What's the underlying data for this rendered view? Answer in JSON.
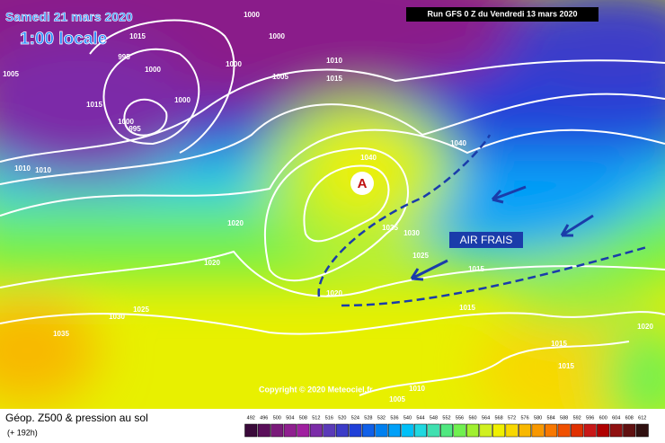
{
  "header": {
    "date": "Samedi 21 mars 2020",
    "time": "1:00 locale",
    "run": "Run GFS 0 Z du Vendredi 13 mars 2020"
  },
  "map": {
    "anticyclone": "A",
    "annotation": "AIR FRAIS",
    "copyright": "Copyright © 2020 Meteociel.fr",
    "isobar_labels": [
      1000,
      1015,
      1000,
      995,
      1000,
      1000,
      1005,
      1005,
      1010,
      1015,
      1015,
      1000,
      1000,
      995,
      1010,
      1010,
      1040,
      1040,
      1020,
      1035,
      1030,
      1020,
      1025,
      1015,
      1020,
      1030,
      1025,
      1015,
      1035,
      1020,
      1015,
      1015,
      1010,
      1005
    ]
  },
  "legend": {
    "title": "Géop. Z500 & pression au sol",
    "subtitle": "(+ 192h)",
    "values": [
      492,
      496,
      500,
      504,
      508,
      512,
      516,
      520,
      524,
      528,
      532,
      536,
      540,
      544,
      548,
      552,
      556,
      560,
      564,
      568,
      572,
      576,
      580,
      584,
      588,
      592,
      596,
      600,
      604,
      608,
      612
    ],
    "colors": [
      "#3a0a3a",
      "#5a0f5a",
      "#7a1a7a",
      "#8f1f8f",
      "#a020a0",
      "#7b2ca8",
      "#5a3ab8",
      "#3c3cc8",
      "#2040d8",
      "#1060e8",
      "#0080f0",
      "#00a0f8",
      "#00c0f8",
      "#20d8e0",
      "#40e0b0",
      "#50e880",
      "#70f050",
      "#a0f030",
      "#d0f020",
      "#f0f000",
      "#f8d800",
      "#f8b800",
      "#f89800",
      "#f87800",
      "#f05000",
      "#e03000",
      "#c81818",
      "#b00000",
      "#901010",
      "#601010",
      "#301010"
    ]
  }
}
